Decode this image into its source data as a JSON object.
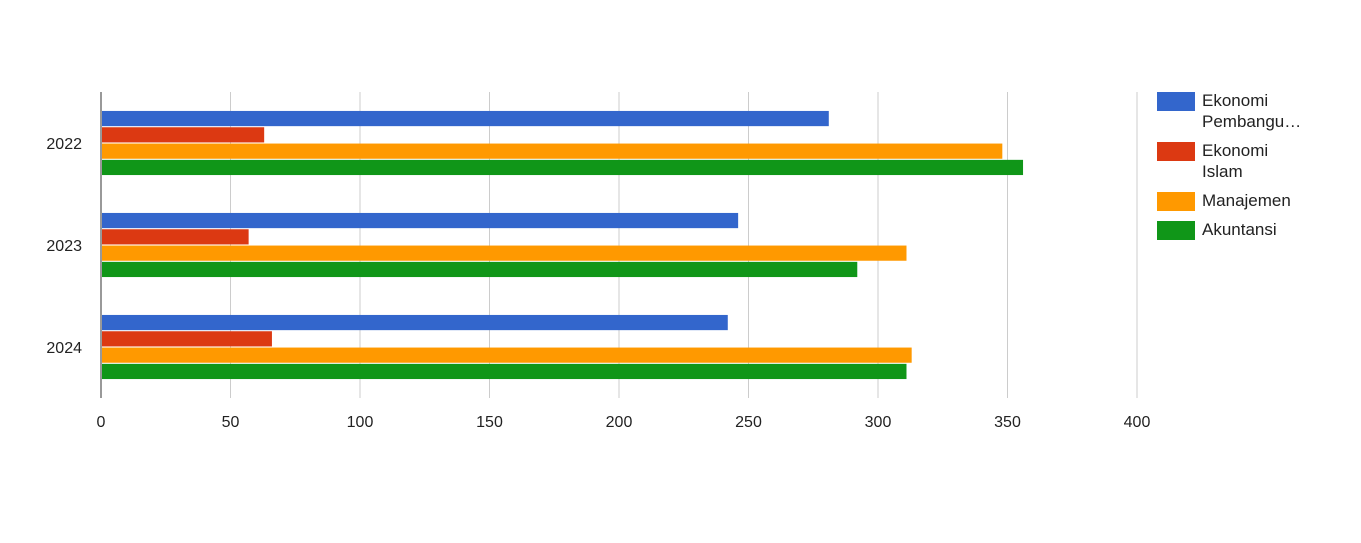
{
  "chart_data": {
    "type": "bar",
    "orientation": "horizontal",
    "categories": [
      "2022",
      "2023",
      "2024"
    ],
    "series": [
      {
        "name": "Ekonomi Pembangu…",
        "color": "#3366cc",
        "values": [
          281,
          246,
          242
        ]
      },
      {
        "name": "Ekonomi Islam",
        "color": "#dc3912",
        "values": [
          63,
          57,
          66
        ]
      },
      {
        "name": "Manajemen",
        "color": "#ff9900",
        "values": [
          348,
          311,
          313
        ]
      },
      {
        "name": "Akuntansi",
        "color": "#109618",
        "values": [
          356,
          292,
          311
        ]
      }
    ],
    "xlim": [
      0,
      400
    ],
    "xticks": [
      "0",
      "50",
      "100",
      "150",
      "200",
      "250",
      "300",
      "350",
      "400"
    ],
    "grid": true,
    "legend_position": "right",
    "title": "",
    "xlabel": "",
    "ylabel": ""
  }
}
